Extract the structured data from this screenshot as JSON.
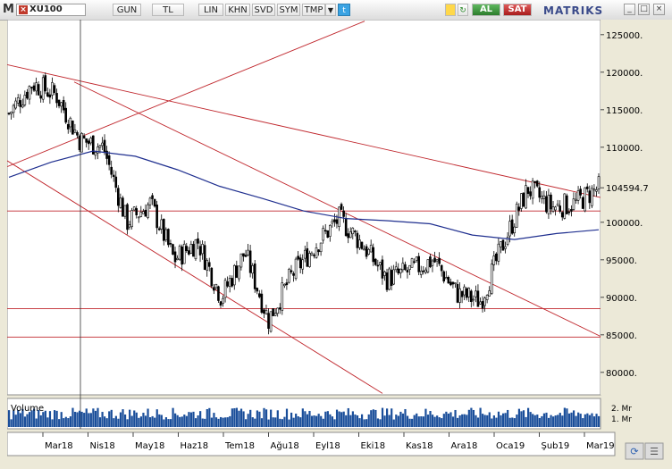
{
  "toolbar": {
    "logo": "M",
    "symbol": "XU100",
    "buttons": [
      "GUN",
      "TL",
      "LIN",
      "KHN",
      "SVD",
      "SYM",
      "TMP"
    ],
    "buy_label": "AL",
    "sell_label": "SAT",
    "brand": "MATRIKS"
  },
  "colors": {
    "price": "#000000",
    "moving_average": "#1f2f8f",
    "trendlines": "#c0272d",
    "volume": "#1a4e9a",
    "background": "#ffffff"
  },
  "chart_data": [
    {
      "type": "candlestick",
      "title": "XU100",
      "y_axis_ticks": [
        "125000.",
        "120000.",
        "115000.",
        "110000.",
        "104594.7",
        "100000.",
        "95000.",
        "90000.",
        "85000.",
        "80000."
      ],
      "ylim": [
        77000,
        127000
      ],
      "last_value": "104594.7",
      "x_tick_labels": [
        "Mar18",
        "Nis18",
        "May18",
        "Haz18",
        "Tem18",
        "Ağu18",
        "Eyl18",
        "Eki18",
        "Kas18",
        "Ara18",
        "Oca19",
        "Şub19",
        "Mar19"
      ],
      "approx_close_path": [
        {
          "date": "Mar18",
          "value": 114500
        },
        {
          "date": "Mar18b",
          "value": 118500
        },
        {
          "date": "Nis18",
          "value": 117000
        },
        {
          "date": "Nis18b",
          "value": 111000
        },
        {
          "date": "May18",
          "value": 110000
        },
        {
          "date": "May18b",
          "value": 100000
        },
        {
          "date": "Haz18",
          "value": 102500
        },
        {
          "date": "Haz18b",
          "value": 95000
        },
        {
          "date": "Tem18",
          "value": 97500
        },
        {
          "date": "Tem18b",
          "value": 90000
        },
        {
          "date": "Ağu18",
          "value": 96000
        },
        {
          "date": "Ağu18b",
          "value": 87000
        },
        {
          "date": "Eyl18",
          "value": 93000
        },
        {
          "date": "Eyl18b",
          "value": 97000
        },
        {
          "date": "Eki18",
          "value": 100500
        },
        {
          "date": "Eki18b",
          "value": 97000
        },
        {
          "date": "Kas18",
          "value": 92500
        },
        {
          "date": "Kas18b",
          "value": 93500
        },
        {
          "date": "Ara18",
          "value": 95000
        },
        {
          "date": "Ara18b",
          "value": 90500
        },
        {
          "date": "Oca19",
          "value": 89500
        },
        {
          "date": "Oca19b",
          "value": 97500
        },
        {
          "date": "Şub19",
          "value": 104500
        },
        {
          "date": "Şub19b",
          "value": 102000
        },
        {
          "date": "Mar19",
          "value": 102500
        },
        {
          "date": "Mar19b",
          "value": 104594.7
        }
      ],
      "moving_average": [
        106000,
        108000,
        109500,
        108800,
        107000,
        104800,
        103200,
        101500,
        100500,
        100200,
        99800,
        98300,
        97700,
        98500,
        99000
      ]
    },
    {
      "type": "bar",
      "title": "Volume",
      "y_axis_ticks": [
        "2. Mr",
        "1. Mr"
      ]
    }
  ]
}
